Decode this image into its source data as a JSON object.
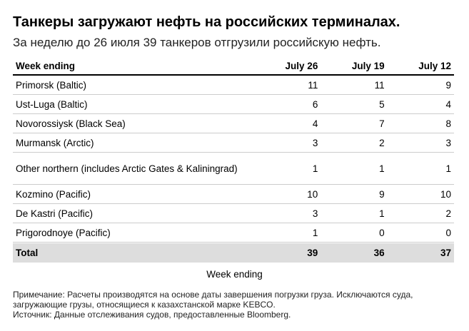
{
  "header": {
    "title": "Танкеры загружают нефть на российских терминалах.",
    "subtitle": "За неделю до 26 июля 39 танкеров отгрузили российскую нефть."
  },
  "table": {
    "columns": [
      "Week ending",
      "July 26",
      "July 19",
      "July 12"
    ],
    "rows": [
      [
        "Primorsk (Baltic)",
        11,
        11,
        9
      ],
      [
        "Ust-Luga (Baltic)",
        6,
        5,
        4
      ],
      [
        "Novorossiysk (Black Sea)",
        4,
        7,
        8
      ],
      [
        "Murmansk (Arctic)",
        3,
        2,
        3
      ],
      [
        "Other northern (includes Arctic Gates & Kaliningrad)",
        1,
        1,
        1
      ],
      [
        "Kozmino (Pacific)",
        10,
        9,
        10
      ],
      [
        "De Kastri (Pacific)",
        3,
        1,
        2
      ],
      [
        "Prigorodnoye (Pacific)",
        1,
        0,
        0
      ]
    ],
    "total": [
      "Total",
      39,
      36,
      37
    ],
    "caption": "Week ending"
  },
  "footer": {
    "note": "Примечание: Расчеты производятся на основе даты завершения погрузки груза. Исключаются суда, загружающие грузы, относящиеся к казахстанской марке KEBCO.",
    "source": "Источник: Данные отслеживания судов, предоставленные Bloomberg."
  }
}
